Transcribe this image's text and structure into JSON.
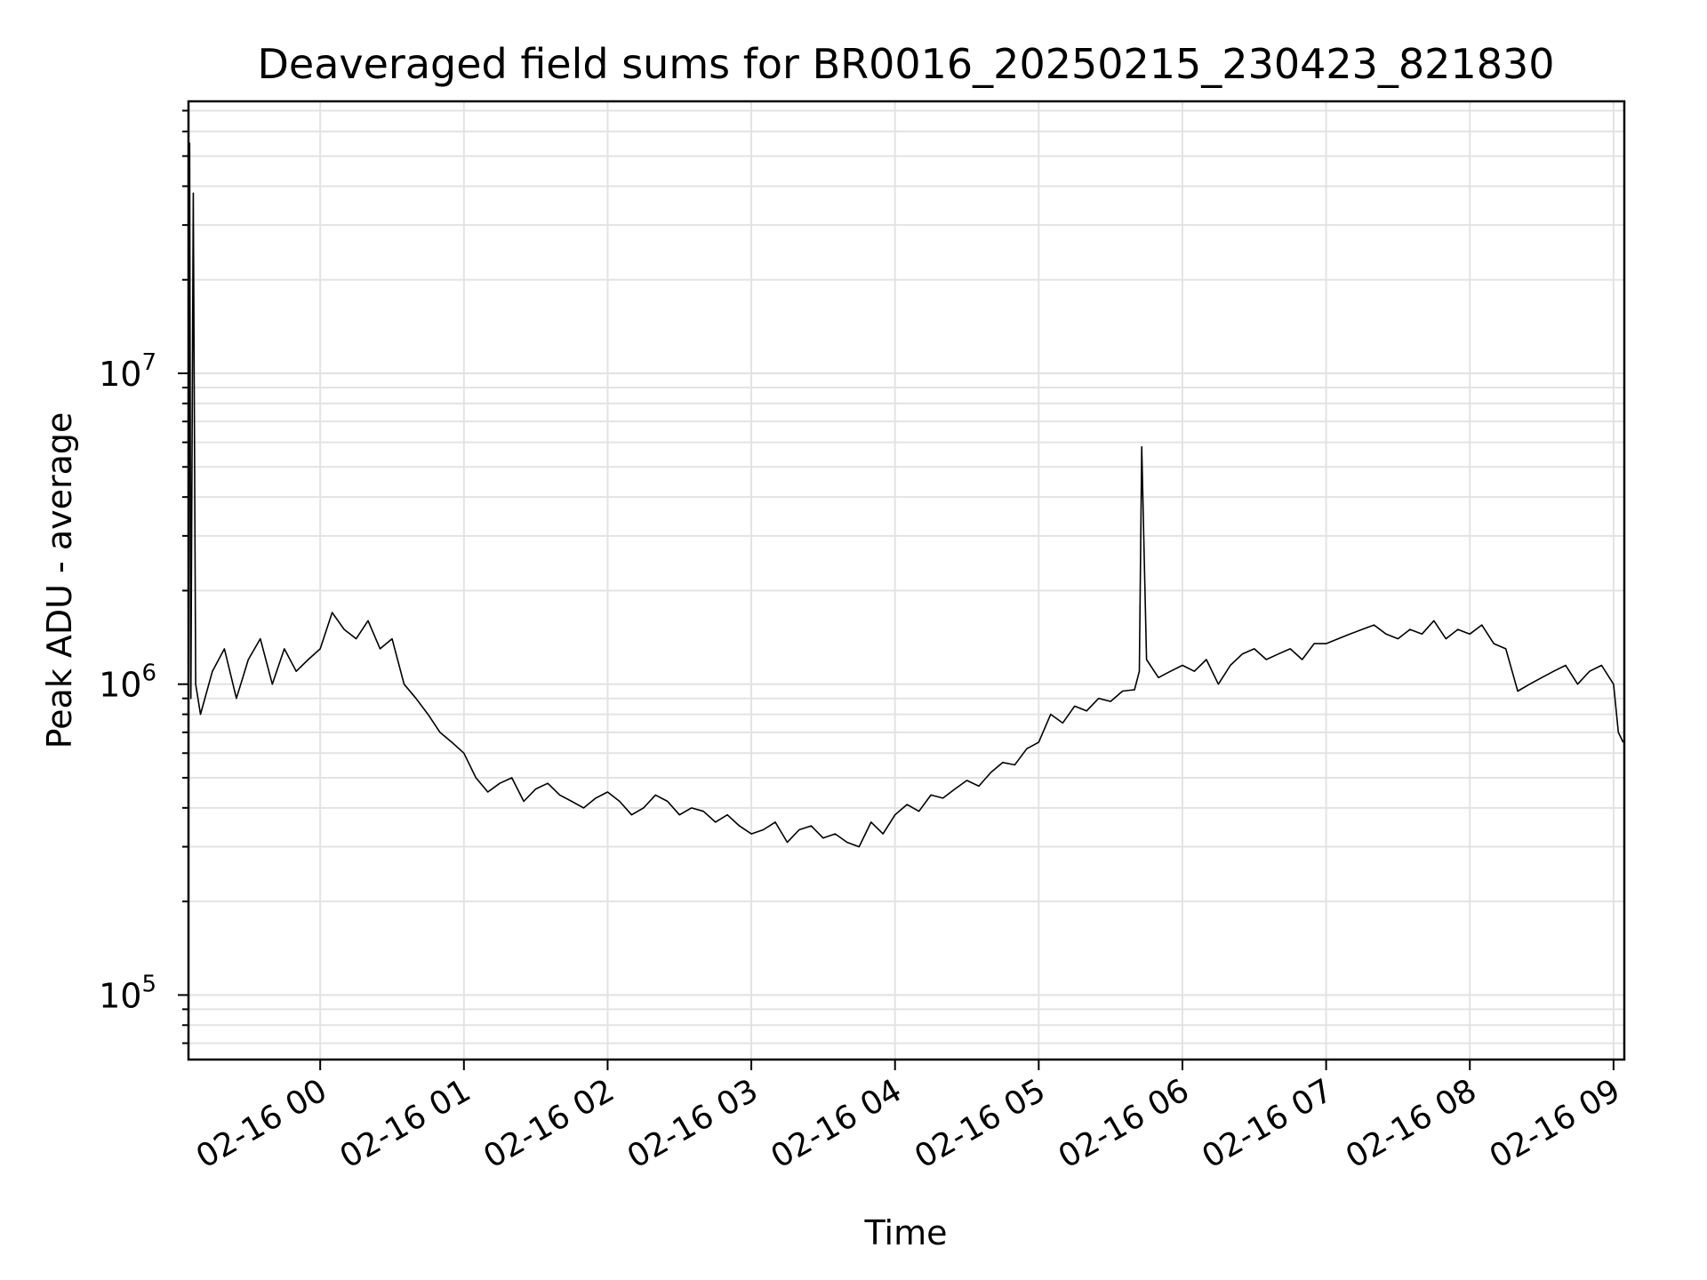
{
  "chart_data": {
    "type": "line",
    "title": "Deaveraged field sums for BR0016_20250215_230423_821830",
    "xlabel": "Time",
    "ylabel": "Peak ADU - average",
    "yscale": "log",
    "ylim": [
      62000,
      75000000
    ],
    "xlim": [
      "2025-02-15T23:05:00",
      "2025-02-16T09:04:30"
    ],
    "grid": true,
    "line_color": "#000000",
    "x_ticks": [
      {
        "time": "2025-02-16T00:00:00",
        "label": "02-16 00"
      },
      {
        "time": "2025-02-16T01:00:00",
        "label": "02-16 01"
      },
      {
        "time": "2025-02-16T02:00:00",
        "label": "02-16 02"
      },
      {
        "time": "2025-02-16T03:00:00",
        "label": "02-16 03"
      },
      {
        "time": "2025-02-16T04:00:00",
        "label": "02-16 04"
      },
      {
        "time": "2025-02-16T05:00:00",
        "label": "02-16 05"
      },
      {
        "time": "2025-02-16T06:00:00",
        "label": "02-16 06"
      },
      {
        "time": "2025-02-16T07:00:00",
        "label": "02-16 07"
      },
      {
        "time": "2025-02-16T08:00:00",
        "label": "02-16 08"
      },
      {
        "time": "2025-02-16T09:00:00",
        "label": "02-16 09"
      }
    ],
    "y_ticks": [
      {
        "value": 100000,
        "base": "10",
        "exp": "5"
      },
      {
        "value": 1000000,
        "base": "10",
        "exp": "6"
      },
      {
        "value": 10000000,
        "base": "10",
        "exp": "7"
      }
    ],
    "series": [
      {
        "x": [
          "2025-02-15T23:05:00",
          "2025-02-15T23:05:30",
          "2025-02-15T23:06:00",
          "2025-02-15T23:07:00",
          "2025-02-15T23:08:00",
          "2025-02-15T23:10:00",
          "2025-02-15T23:15:00",
          "2025-02-15T23:20:00",
          "2025-02-15T23:25:00",
          "2025-02-15T23:30:00",
          "2025-02-15T23:35:00",
          "2025-02-15T23:40:00",
          "2025-02-15T23:45:00",
          "2025-02-15T23:50:00",
          "2025-02-15T23:55:00",
          "2025-02-16T00:00:00",
          "2025-02-16T00:05:00",
          "2025-02-16T00:10:00",
          "2025-02-16T00:15:00",
          "2025-02-16T00:20:00",
          "2025-02-16T00:25:00",
          "2025-02-16T00:30:00",
          "2025-02-16T00:35:00",
          "2025-02-16T00:40:00",
          "2025-02-16T00:45:00",
          "2025-02-16T00:50:00",
          "2025-02-16T00:55:00",
          "2025-02-16T01:00:00",
          "2025-02-16T01:05:00",
          "2025-02-16T01:10:00",
          "2025-02-16T01:15:00",
          "2025-02-16T01:20:00",
          "2025-02-16T01:25:00",
          "2025-02-16T01:30:00",
          "2025-02-16T01:35:00",
          "2025-02-16T01:40:00",
          "2025-02-16T01:45:00",
          "2025-02-16T01:50:00",
          "2025-02-16T01:55:00",
          "2025-02-16T02:00:00",
          "2025-02-16T02:05:00",
          "2025-02-16T02:10:00",
          "2025-02-16T02:15:00",
          "2025-02-16T02:20:00",
          "2025-02-16T02:25:00",
          "2025-02-16T02:30:00",
          "2025-02-16T02:35:00",
          "2025-02-16T02:40:00",
          "2025-02-16T02:45:00",
          "2025-02-16T02:50:00",
          "2025-02-16T02:55:00",
          "2025-02-16T03:00:00",
          "2025-02-16T03:05:00",
          "2025-02-16T03:10:00",
          "2025-02-16T03:15:00",
          "2025-02-16T03:20:00",
          "2025-02-16T03:25:00",
          "2025-02-16T03:30:00",
          "2025-02-16T03:35:00",
          "2025-02-16T03:40:00",
          "2025-02-16T03:45:00",
          "2025-02-16T03:50:00",
          "2025-02-16T03:55:00",
          "2025-02-16T04:00:00",
          "2025-02-16T04:05:00",
          "2025-02-16T04:10:00",
          "2025-02-16T04:15:00",
          "2025-02-16T04:20:00",
          "2025-02-16T04:25:00",
          "2025-02-16T04:30:00",
          "2025-02-16T04:35:00",
          "2025-02-16T04:40:00",
          "2025-02-16T04:45:00",
          "2025-02-16T04:50:00",
          "2025-02-16T04:55:00",
          "2025-02-16T05:00:00",
          "2025-02-16T05:05:00",
          "2025-02-16T05:10:00",
          "2025-02-16T05:15:00",
          "2025-02-16T05:20:00",
          "2025-02-16T05:25:00",
          "2025-02-16T05:30:00",
          "2025-02-16T05:35:00",
          "2025-02-16T05:40:00",
          "2025-02-16T05:42:00",
          "2025-02-16T05:43:00",
          "2025-02-16T05:45:00",
          "2025-02-16T05:50:00",
          "2025-02-16T05:55:00",
          "2025-02-16T06:00:00",
          "2025-02-16T06:05:00",
          "2025-02-16T06:10:00",
          "2025-02-16T06:15:00",
          "2025-02-16T06:20:00",
          "2025-02-16T06:25:00",
          "2025-02-16T06:30:00",
          "2025-02-16T06:35:00",
          "2025-02-16T06:40:00",
          "2025-02-16T06:45:00",
          "2025-02-16T06:50:00",
          "2025-02-16T06:55:00",
          "2025-02-16T07:00:00",
          "2025-02-16T07:05:00",
          "2025-02-16T07:10:00",
          "2025-02-16T07:15:00",
          "2025-02-16T07:20:00",
          "2025-02-16T07:25:00",
          "2025-02-16T07:30:00",
          "2025-02-16T07:35:00",
          "2025-02-16T07:40:00",
          "2025-02-16T07:45:00",
          "2025-02-16T07:50:00",
          "2025-02-16T07:55:00",
          "2025-02-16T08:00:00",
          "2025-02-16T08:05:00",
          "2025-02-16T08:10:00",
          "2025-02-16T08:15:00",
          "2025-02-16T08:20:00",
          "2025-02-16T08:25:00",
          "2025-02-16T08:30:00",
          "2025-02-16T08:35:00",
          "2025-02-16T08:40:00",
          "2025-02-16T08:45:00",
          "2025-02-16T08:50:00",
          "2025-02-16T08:55:00",
          "2025-02-16T09:00:00",
          "2025-02-16T09:02:00",
          "2025-02-16T09:04:00"
        ],
        "y": [
          1100000,
          55000000,
          900000,
          38000000,
          1000000,
          800000,
          1100000,
          1300000,
          900000,
          1200000,
          1400000,
          1000000,
          1300000,
          1100000,
          1200000,
          1300000,
          1700000,
          1500000,
          1400000,
          1600000,
          1300000,
          1400000,
          1000000,
          900000,
          800000,
          700000,
          650000,
          600000,
          500000,
          450000,
          480000,
          500000,
          420000,
          460000,
          480000,
          440000,
          420000,
          400000,
          430000,
          450000,
          420000,
          380000,
          400000,
          440000,
          420000,
          380000,
          400000,
          390000,
          360000,
          380000,
          350000,
          330000,
          340000,
          360000,
          310000,
          340000,
          350000,
          320000,
          330000,
          310000,
          300000,
          360000,
          330000,
          380000,
          410000,
          390000,
          440000,
          430000,
          460000,
          490000,
          470000,
          520000,
          560000,
          550000,
          620000,
          650000,
          800000,
          750000,
          850000,
          820000,
          900000,
          880000,
          950000,
          960000,
          1100000,
          5800000,
          1200000,
          1050000,
          1100000,
          1150000,
          1100000,
          1200000,
          1000000,
          1150000,
          1250000,
          1300000,
          1200000,
          1250000,
          1300000,
          1200000,
          1350000,
          1350000,
          1400000,
          1450000,
          1500000,
          1550000,
          1450000,
          1400000,
          1500000,
          1450000,
          1600000,
          1400000,
          1500000,
          1450000,
          1550000,
          1350000,
          1300000,
          950000,
          1000000,
          1050000,
          1100000,
          1150000,
          1000000,
          1100000,
          1150000,
          1000000,
          700000,
          650000
        ]
      }
    ]
  }
}
